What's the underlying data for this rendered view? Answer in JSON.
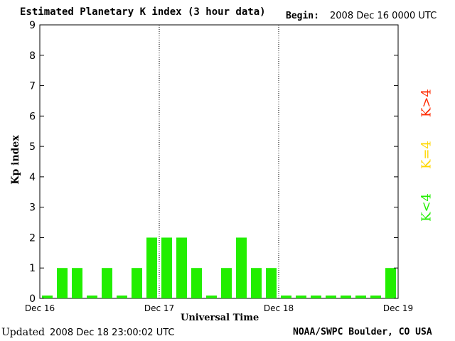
{
  "header": {
    "title": "Estimated Planetary K index (3 hour data)",
    "begin_label": "Begin:",
    "begin_value": "2008 Dec 16 0000 UTC"
  },
  "footer": {
    "updated_label": "Updated",
    "updated_value": "2008 Dec 18 23:00:02 UTC",
    "source": "NOAA/SWPC Boulder, CO USA"
  },
  "legend": [
    {
      "label": "K>4",
      "color": "#ff2a00"
    },
    {
      "label": "K=4",
      "color": "#ffd700"
    },
    {
      "label": "K<4",
      "color": "#22ee00"
    }
  ],
  "chart_data": {
    "type": "bar",
    "title": "Estimated Planetary K index (3 hour data)",
    "xlabel": "Universal Time",
    "ylabel": "Kp index",
    "ylim": [
      0,
      9
    ],
    "yticks": [
      0,
      1,
      2,
      3,
      4,
      5,
      6,
      7,
      8,
      9
    ],
    "x_tick_labels": [
      "Dec 16",
      "Dec 17",
      "Dec 18",
      "Dec 19"
    ],
    "day_separators": [
      "Dec 17",
      "Dec 18"
    ],
    "grid": false,
    "bar_color": "#22ee00",
    "series": [
      {
        "values": [
          0,
          1,
          1,
          0,
          1,
          0,
          1,
          2,
          2,
          2,
          1,
          0,
          1,
          2,
          1,
          1,
          0,
          0,
          0,
          0,
          0,
          0,
          0,
          1
        ]
      }
    ]
  }
}
